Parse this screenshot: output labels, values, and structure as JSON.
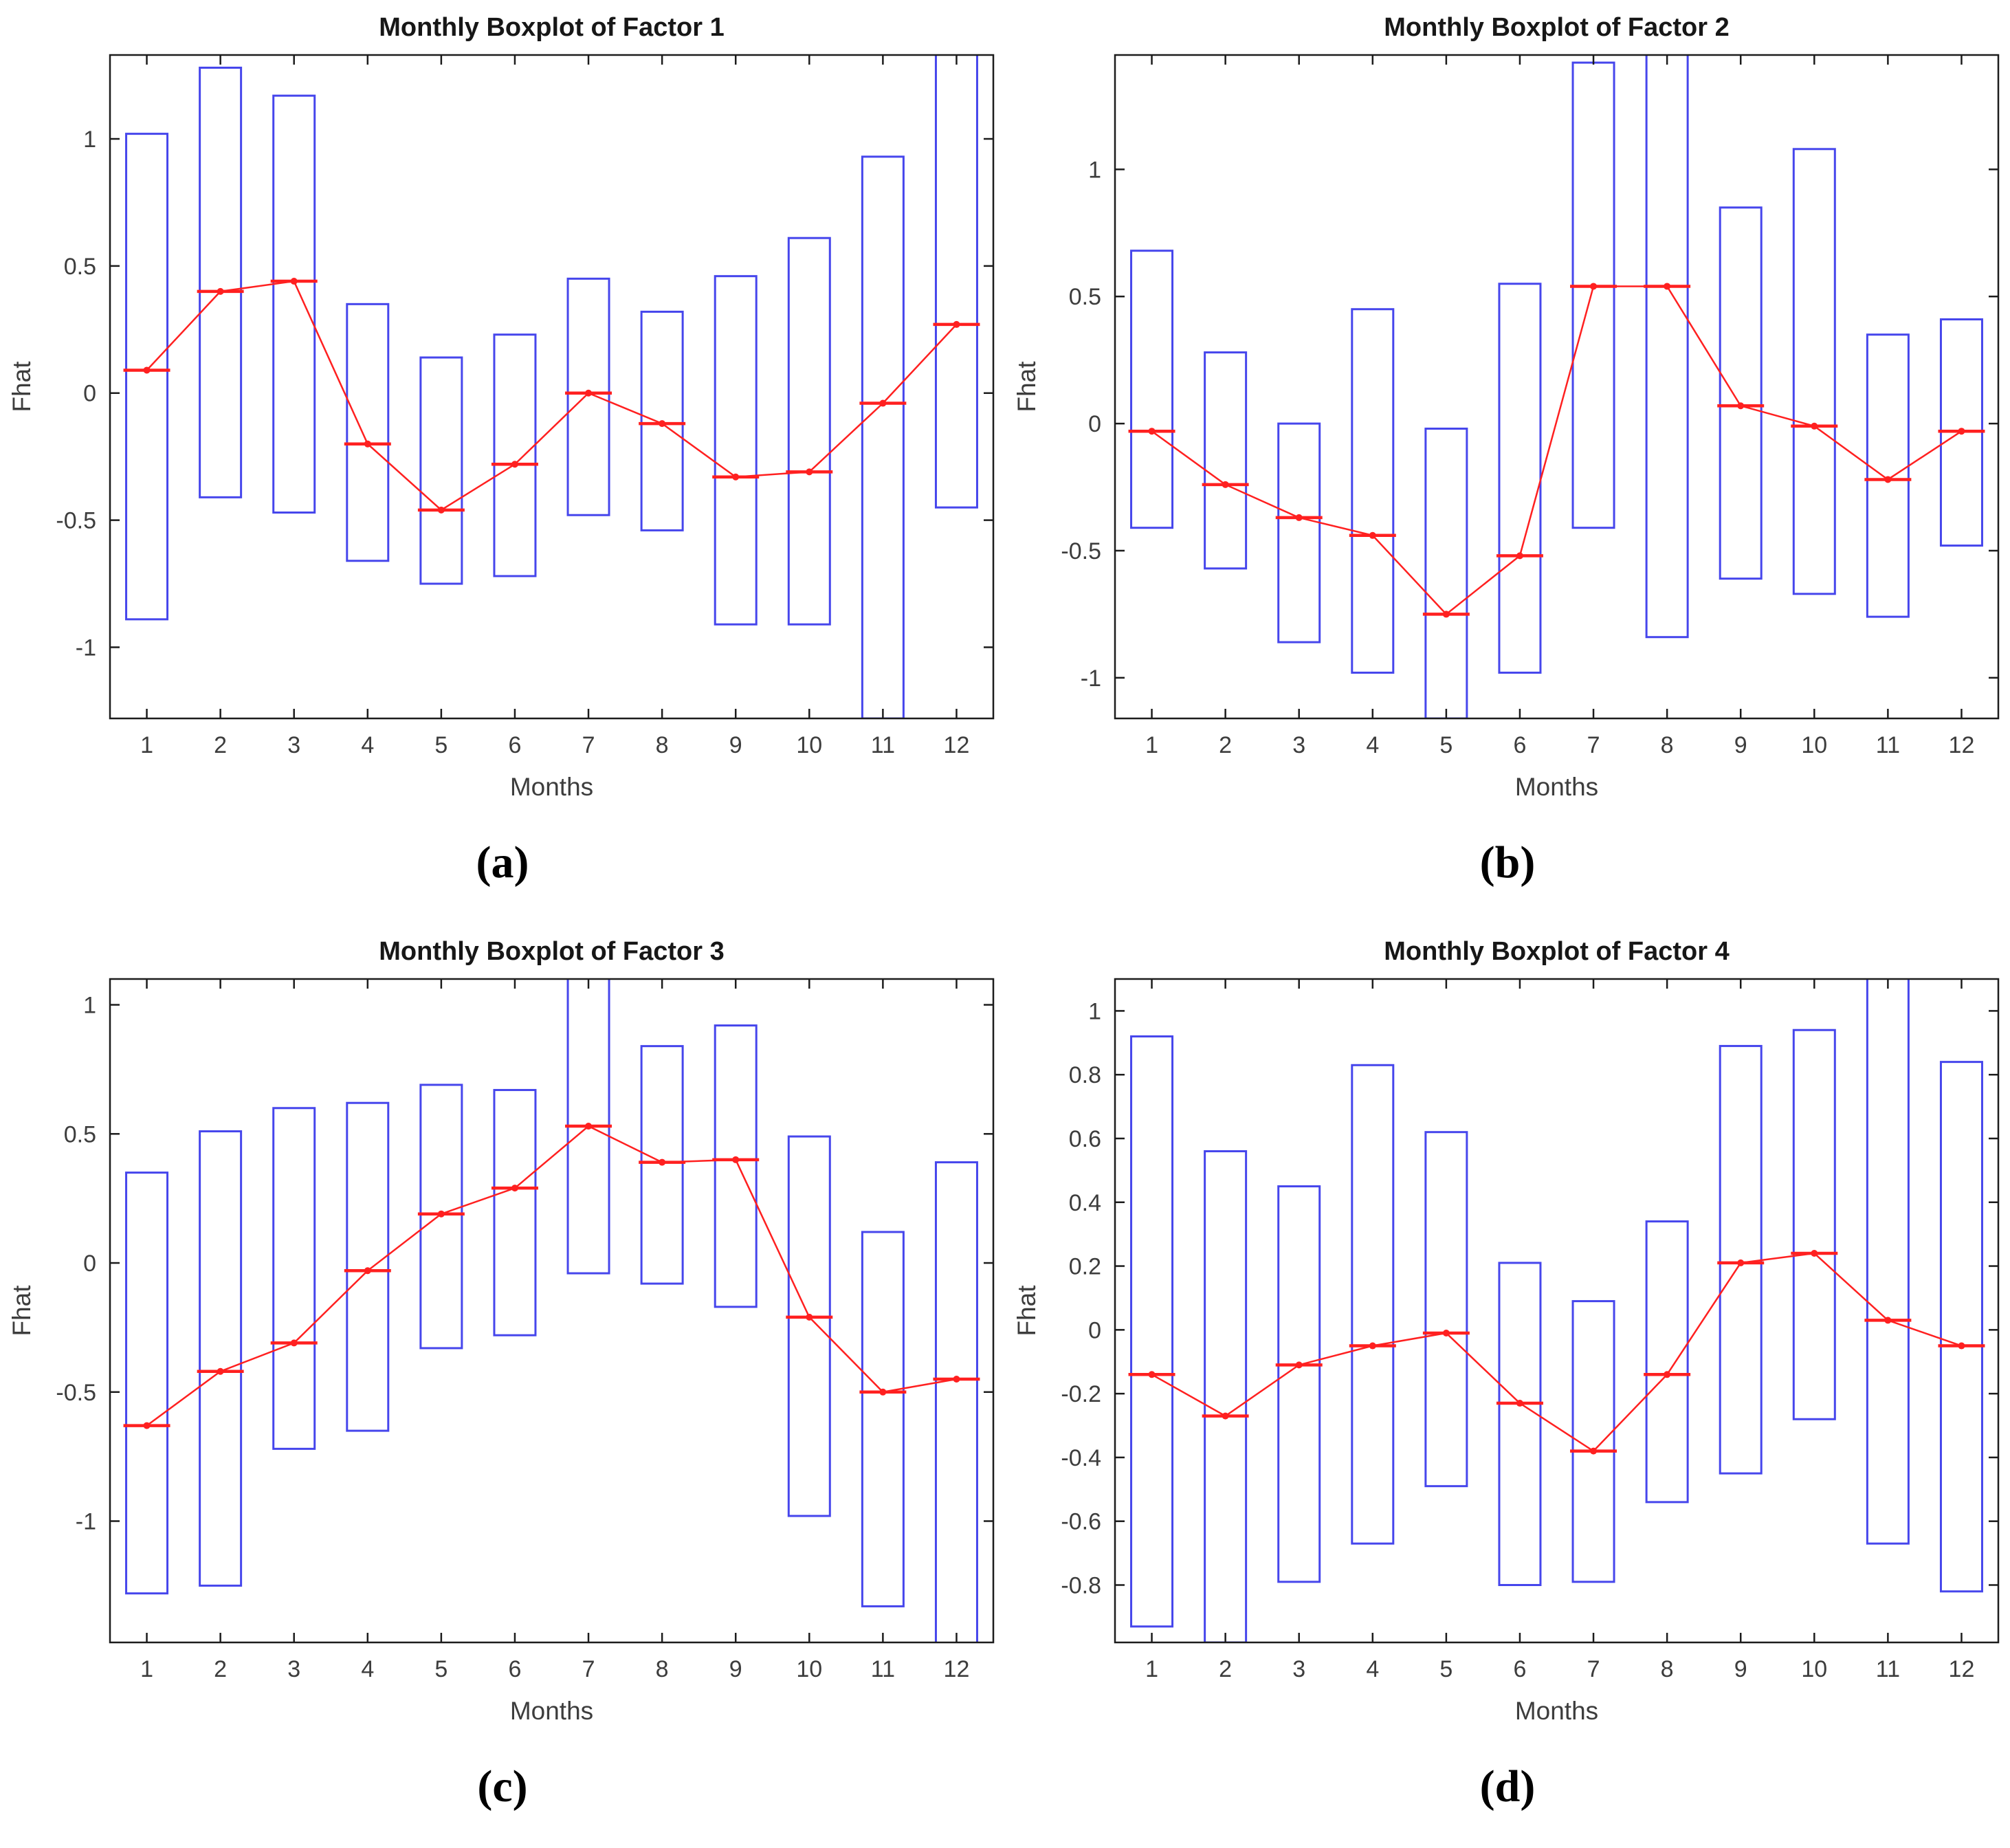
{
  "figure": {
    "background": "#ffffff",
    "style": {
      "box_color": "#4646ec",
      "median_color": "#ff2020",
      "axis_color": "#1c1c1c",
      "label_color": "#3d3d3d"
    }
  },
  "chart_data": [
    {
      "type": "boxplot",
      "title": "Monthly Boxplot of Factor 1",
      "xlabel": "Months",
      "ylabel": "Fhat",
      "caption": "(a)",
      "months": [
        1,
        2,
        3,
        4,
        5,
        6,
        7,
        8,
        9,
        10,
        11,
        12
      ],
      "ylim": [
        -1.28,
        1.33
      ],
      "yticks": [
        -1,
        -0.5,
        0,
        0.5,
        1
      ],
      "ytick_labels": [
        "-1",
        "-0.5",
        "0",
        "0.5",
        "1"
      ],
      "box_high": [
        1.02,
        1.28,
        1.17,
        0.35,
        0.14,
        0.23,
        0.45,
        0.32,
        0.46,
        0.61,
        0.93,
        1.38
      ],
      "box_low": [
        -0.89,
        -0.41,
        -0.47,
        -0.66,
        -0.75,
        -0.72,
        -0.48,
        -0.54,
        -0.91,
        -0.91,
        -1.28,
        -0.45
      ],
      "median": [
        0.09,
        0.4,
        0.44,
        -0.2,
        -0.46,
        -0.28,
        0.0,
        -0.12,
        -0.33,
        -0.31,
        -0.04,
        0.27
      ]
    },
    {
      "type": "boxplot",
      "title": "Monthly Boxplot of Factor 2",
      "xlabel": "Months",
      "ylabel": "Fhat",
      "caption": "(b)",
      "months": [
        1,
        2,
        3,
        4,
        5,
        6,
        7,
        8,
        9,
        10,
        11,
        12
      ],
      "ylim": [
        -1.16,
        1.45
      ],
      "yticks": [
        -1,
        -0.5,
        0,
        0.5,
        1
      ],
      "ytick_labels": [
        "-1",
        "-0.5",
        "0",
        "0.5",
        "1"
      ],
      "box_high": [
        0.68,
        0.28,
        0.0,
        0.45,
        -0.02,
        0.55,
        1.42,
        1.52,
        0.85,
        1.08,
        0.35,
        0.41
      ],
      "box_low": [
        -0.41,
        -0.57,
        -0.86,
        -0.98,
        -1.16,
        -0.98,
        -0.41,
        -0.84,
        -0.61,
        -0.67,
        -0.76,
        -0.48
      ],
      "median": [
        -0.03,
        -0.24,
        -0.37,
        -0.44,
        -0.75,
        -0.52,
        0.54,
        0.54,
        0.07,
        -0.01,
        -0.22,
        -0.03
      ]
    },
    {
      "type": "boxplot",
      "title": "Monthly Boxplot of Factor 3",
      "xlabel": "Months",
      "ylabel": "Fhat",
      "caption": "(c)",
      "months": [
        1,
        2,
        3,
        4,
        5,
        6,
        7,
        8,
        9,
        10,
        11,
        12
      ],
      "ylim": [
        -1.47,
        1.1
      ],
      "yticks": [
        -1,
        -0.5,
        0,
        0.5,
        1
      ],
      "ytick_labels": [
        "-1",
        "-0.5",
        "0",
        "0.5",
        "1"
      ],
      "box_high": [
        0.35,
        0.51,
        0.6,
        0.62,
        0.69,
        0.67,
        1.16,
        0.84,
        0.92,
        0.49,
        0.12,
        0.39
      ],
      "box_low": [
        -1.28,
        -1.25,
        -0.72,
        -0.65,
        -0.33,
        -0.28,
        -0.04,
        -0.08,
        -0.17,
        -0.98,
        -1.33,
        -1.55
      ],
      "median": [
        -0.63,
        -0.42,
        -0.31,
        -0.03,
        0.19,
        0.29,
        0.53,
        0.39,
        0.4,
        -0.21,
        -0.5,
        -0.45
      ]
    },
    {
      "type": "boxplot",
      "title": "Monthly Boxplot of Factor 4",
      "xlabel": "Months",
      "ylabel": "Fhat",
      "caption": "(d)",
      "months": [
        1,
        2,
        3,
        4,
        5,
        6,
        7,
        8,
        9,
        10,
        11,
        12
      ],
      "ylim": [
        -0.98,
        1.1
      ],
      "yticks": [
        -0.8,
        -0.6,
        -0.4,
        -0.2,
        0,
        0.2,
        0.4,
        0.6,
        0.8,
        1
      ],
      "ytick_labels": [
        "-0.8",
        "-0.6",
        "-0.4",
        "-0.2",
        "0",
        "0.2",
        "0.4",
        "0.6",
        "0.8",
        "1"
      ],
      "box_high": [
        0.92,
        0.56,
        0.45,
        0.83,
        0.62,
        0.21,
        0.09,
        0.34,
        0.89,
        0.94,
        1.16,
        0.84
      ],
      "box_low": [
        -0.93,
        -0.98,
        -0.79,
        -0.67,
        -0.49,
        -0.8,
        -0.79,
        -0.54,
        -0.45,
        -0.28,
        -0.67,
        -0.82
      ],
      "median": [
        -0.14,
        -0.27,
        -0.11,
        -0.05,
        -0.01,
        -0.23,
        -0.38,
        -0.14,
        0.21,
        0.24,
        0.03,
        -0.05
      ]
    }
  ]
}
